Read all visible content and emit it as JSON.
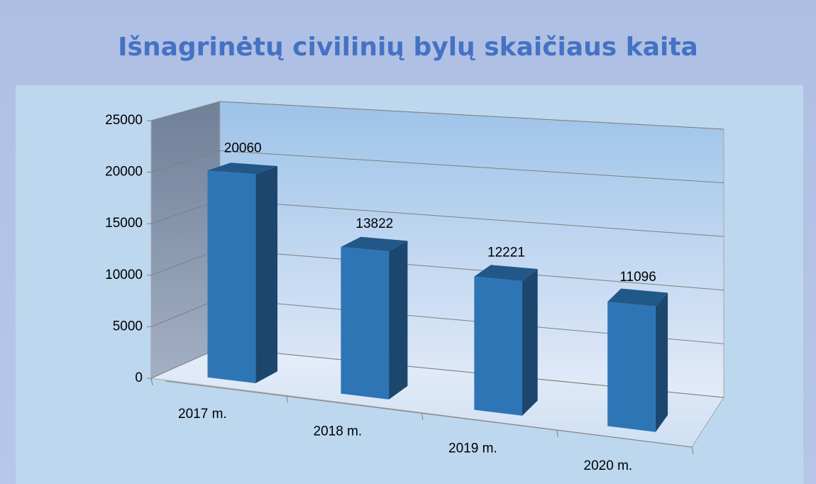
{
  "chart_data": {
    "type": "bar3d",
    "title": "Išnagrinėtų civilinių bylų skaičiaus kaita",
    "categories": [
      "2017 m.",
      "2018 m.",
      "2019 m.",
      "2020 m."
    ],
    "values": [
      20060,
      13822,
      12221,
      11096
    ],
    "color": "#2e75b6",
    "ylim": [
      0,
      25000
    ],
    "yticks": [
      0,
      5000,
      10000,
      15000,
      20000,
      25000
    ],
    "grid": true
  }
}
